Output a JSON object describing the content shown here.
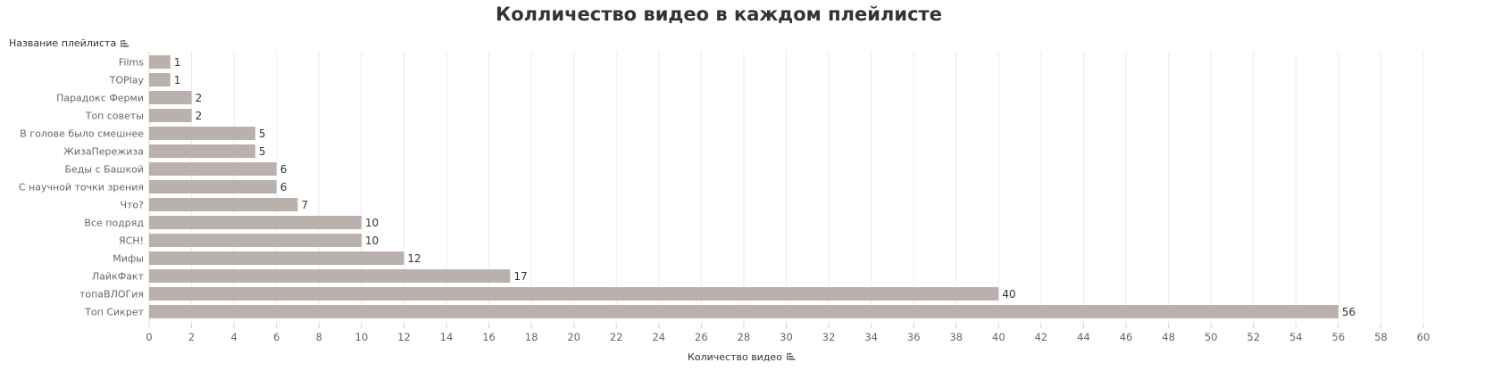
{
  "chart_data": {
    "type": "bar",
    "orientation": "horizontal",
    "title": "Колличество видео в каждом плейлисте",
    "ylabel": "Название плейлиста",
    "xlabel": "Количество видео",
    "sort_icon": "sort-descending-icon",
    "categories": [
      "Films",
      "TOPlay",
      "Парадокс Ферми",
      "Топ советы",
      "В голове было смешнее",
      "ЖизаПережиза",
      "Беды с Башкой",
      "С научной точки зрения",
      "Что?",
      "Все подряд",
      "ЯСН!",
      "Мифы",
      "ЛайкФакт",
      "топаВЛОГия",
      "Топ Сикрет"
    ],
    "values": [
      1,
      1,
      2,
      2,
      5,
      5,
      6,
      6,
      7,
      10,
      10,
      12,
      17,
      40,
      56
    ],
    "xlim": [
      0,
      60
    ],
    "xticks": [
      0,
      2,
      4,
      6,
      8,
      10,
      12,
      14,
      16,
      18,
      20,
      22,
      24,
      26,
      28,
      30,
      32,
      34,
      36,
      38,
      40,
      42,
      44,
      46,
      48,
      50,
      52,
      54,
      56,
      58,
      60
    ],
    "grid": "vertical",
    "bar_color": "#bab0ac",
    "show_data_labels": true
  }
}
